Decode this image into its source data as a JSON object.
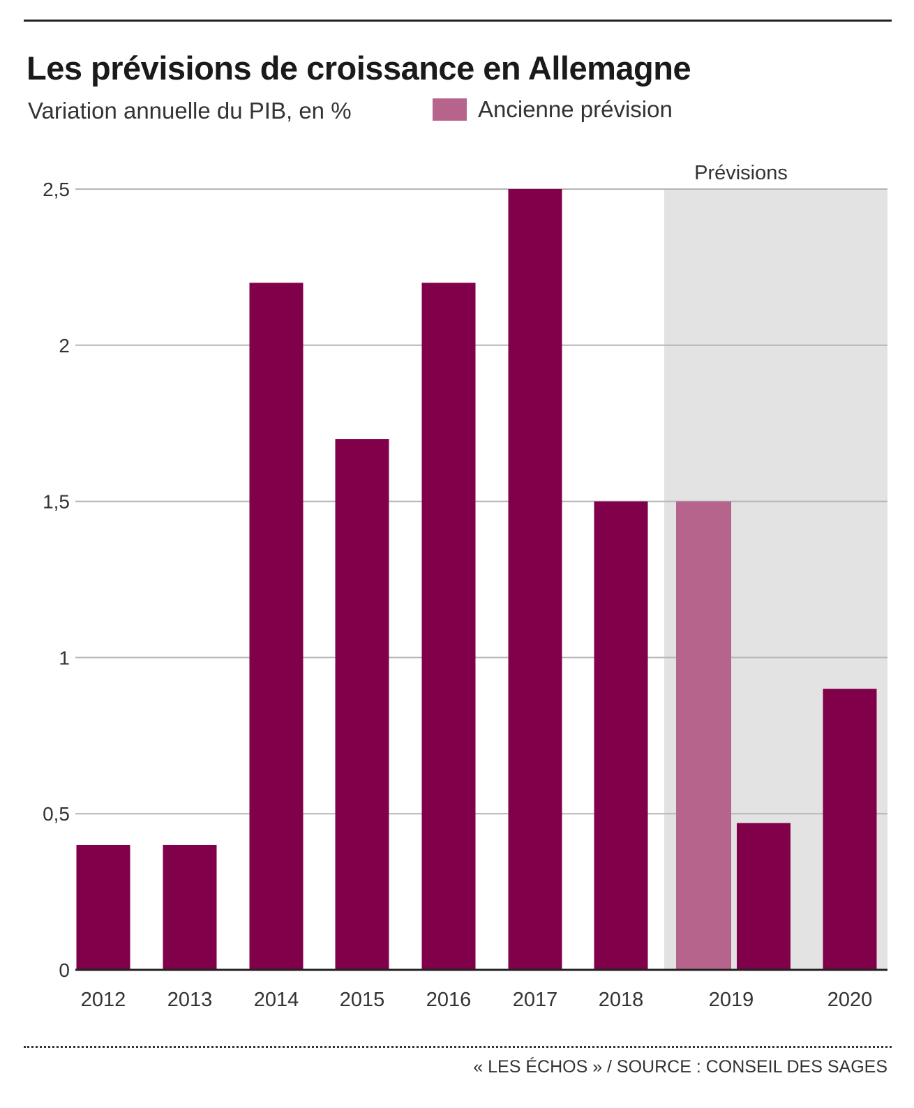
{
  "header": {
    "title": "Les prévisions de croissance en Allemagne",
    "subtitle": "Variation annuelle du PIB, en %"
  },
  "legend": {
    "old_forecast_label": "Ancienne prévision"
  },
  "footer": {
    "source": "« LES ÉCHOS » / SOURCE : CONSEIL DES SAGES"
  },
  "colors": {
    "primary": "#80004a",
    "old_forecast": "#b7648d",
    "forecast_band": "#e3e3e3",
    "grid": "#b5b5b5",
    "axis": "#222222"
  },
  "chart_data": {
    "type": "bar",
    "title": "Les prévisions de croissance en Allemagne",
    "subtitle": "Variation annuelle du PIB, en %",
    "xlabel": "",
    "ylabel": "",
    "ylim": [
      0,
      2.5
    ],
    "yticks": [
      0,
      0.5,
      1,
      1.5,
      2,
      2.5
    ],
    "ytick_labels": [
      "0",
      "0,5",
      "1",
      "1,5",
      "2",
      "2,5"
    ],
    "grid": true,
    "legend_position": "top",
    "categories": [
      "2012",
      "2013",
      "2014",
      "2015",
      "2016",
      "2017",
      "2018",
      "2019",
      "2020"
    ],
    "series": [
      {
        "name": "",
        "values": [
          0.4,
          0.4,
          2.2,
          1.7,
          2.2,
          2.5,
          1.5,
          0.47,
          0.9
        ]
      },
      {
        "name": "Ancienne prévision",
        "values": [
          null,
          null,
          null,
          null,
          null,
          null,
          null,
          1.5,
          null
        ]
      }
    ],
    "forecast_band": {
      "label": "Prévisions",
      "categories": [
        "2019",
        "2020"
      ]
    }
  }
}
